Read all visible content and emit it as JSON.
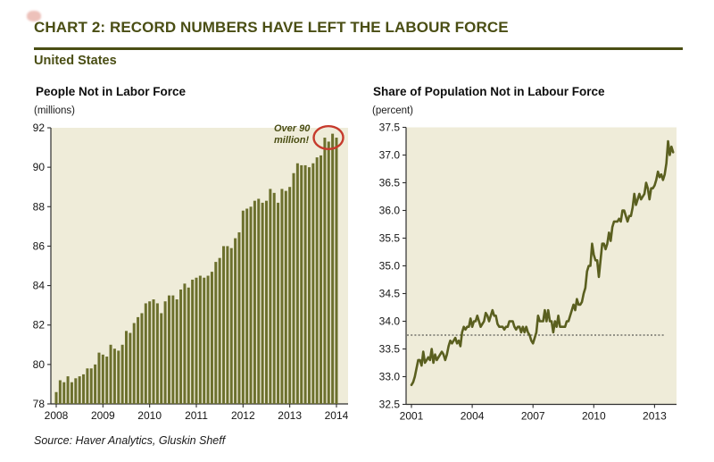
{
  "header": {
    "title": "CHART 2: RECORD NUMBERS HAVE LEFT THE LABOUR FORCE",
    "subtitle": "United States"
  },
  "footer": {
    "source": "Source: Haver Analytics, Gluskin Sheff"
  },
  "colors": {
    "accent_olive": "#4a4e14",
    "bar_fill": "#6c702d",
    "line_stroke": "#5a5f1f",
    "plot_bg": "#efecd9",
    "axis": "#2e2e2e",
    "avg_line": "#333333",
    "highlight_red": "#c63a2c"
  },
  "chart_data": [
    {
      "type": "bar",
      "title": "People Not in Labor Force",
      "unit_label": "(millions)",
      "ylabel": "millions",
      "ylim": [
        78,
        92
      ],
      "y_ticks": [
        "92",
        "90",
        "88",
        "86",
        "84",
        "82",
        "80",
        "78"
      ],
      "x_ticks": [
        "2008",
        "2009",
        "2010",
        "2011",
        "2012",
        "2013",
        "2014"
      ],
      "x_start": "2008-01",
      "x_end": "2014-01",
      "frequency": "monthly",
      "grid": false,
      "annotation": "Over 90 million!",
      "annotation_lines": [
        "Over 90",
        "million!"
      ],
      "values": [
        78.6,
        79.2,
        79.1,
        79.4,
        79.1,
        79.3,
        79.4,
        79.5,
        79.8,
        79.8,
        80.0,
        80.6,
        80.5,
        80.4,
        81.0,
        80.8,
        80.7,
        81.0,
        81.7,
        81.6,
        82.1,
        82.4,
        82.6,
        83.1,
        83.2,
        83.3,
        83.1,
        82.6,
        83.2,
        83.5,
        83.5,
        83.3,
        83.8,
        84.1,
        83.9,
        84.3,
        84.4,
        84.5,
        84.4,
        84.5,
        84.7,
        85.2,
        85.4,
        86.0,
        86.0,
        85.9,
        86.4,
        86.7,
        87.8,
        87.9,
        88.0,
        88.3,
        88.4,
        88.2,
        88.3,
        88.9,
        88.7,
        88.2,
        88.9,
        88.8,
        89.0,
        89.7,
        90.2,
        90.1,
        90.1,
        90.0,
        90.2,
        90.5,
        90.6,
        91.5,
        91.3,
        91.7,
        91.5
      ]
    },
    {
      "type": "line",
      "title": "Share of Population Not in Labour Force",
      "unit_label": "(percent)",
      "ylabel": "percent",
      "ylim": [
        32.5,
        37.5
      ],
      "y_ticks": [
        "37.5",
        "37.0",
        "36.5",
        "36.0",
        "35.5",
        "35.0",
        "34.5",
        "34.0",
        "33.5",
        "33.0",
        "32.5"
      ],
      "x_ticks": [
        "2001",
        "2004",
        "2007",
        "2010",
        "2013"
      ],
      "x_start": "2001-01",
      "x_end": "2013-12",
      "frequency": "monthly",
      "grid": false,
      "avg_line_value": 33.75,
      "values": [
        32.85,
        32.9,
        33.0,
        33.15,
        33.3,
        33.3,
        33.2,
        33.45,
        33.25,
        33.3,
        33.35,
        33.3,
        33.5,
        33.25,
        33.4,
        33.3,
        33.35,
        33.4,
        33.45,
        33.4,
        33.3,
        33.4,
        33.55,
        33.65,
        33.6,
        33.65,
        33.7,
        33.6,
        33.65,
        33.55,
        33.8,
        33.9,
        33.85,
        33.9,
        33.9,
        34.05,
        33.9,
        34.0,
        34.0,
        34.1,
        34.0,
        33.9,
        33.95,
        34.0,
        34.15,
        34.1,
        34.0,
        34.1,
        34.2,
        34.1,
        34.1,
        33.95,
        33.9,
        33.9,
        33.9,
        33.85,
        33.9,
        33.9,
        34.0,
        34.0,
        34.0,
        33.9,
        33.85,
        33.9,
        33.9,
        33.8,
        33.9,
        33.8,
        33.9,
        33.8,
        33.75,
        33.65,
        33.6,
        33.7,
        33.8,
        34.1,
        34.0,
        34.0,
        34.0,
        34.2,
        34.0,
        34.2,
        34.0,
        34.0,
        33.8,
        34.0,
        33.9,
        34.1,
        33.9,
        33.9,
        33.9,
        33.9,
        34.0,
        34.0,
        34.1,
        34.2,
        34.3,
        34.2,
        34.4,
        34.3,
        34.3,
        34.35,
        34.5,
        34.6,
        34.9,
        35.0,
        35.0,
        35.4,
        35.2,
        35.1,
        35.1,
        34.8,
        35.1,
        35.4,
        35.4,
        35.3,
        35.4,
        35.6,
        35.45,
        35.7,
        35.8,
        35.8,
        35.8,
        35.85,
        35.8,
        36.0,
        36.0,
        35.9,
        35.8,
        35.9,
        35.9,
        36.05,
        36.3,
        36.1,
        36.2,
        36.3,
        36.2,
        36.25,
        36.3,
        36.5,
        36.4,
        36.2,
        36.4,
        36.4,
        36.45,
        36.55,
        36.7,
        36.6,
        36.65,
        36.55,
        36.65,
        36.85,
        37.25,
        37.0,
        37.15,
        37.05
      ]
    }
  ]
}
